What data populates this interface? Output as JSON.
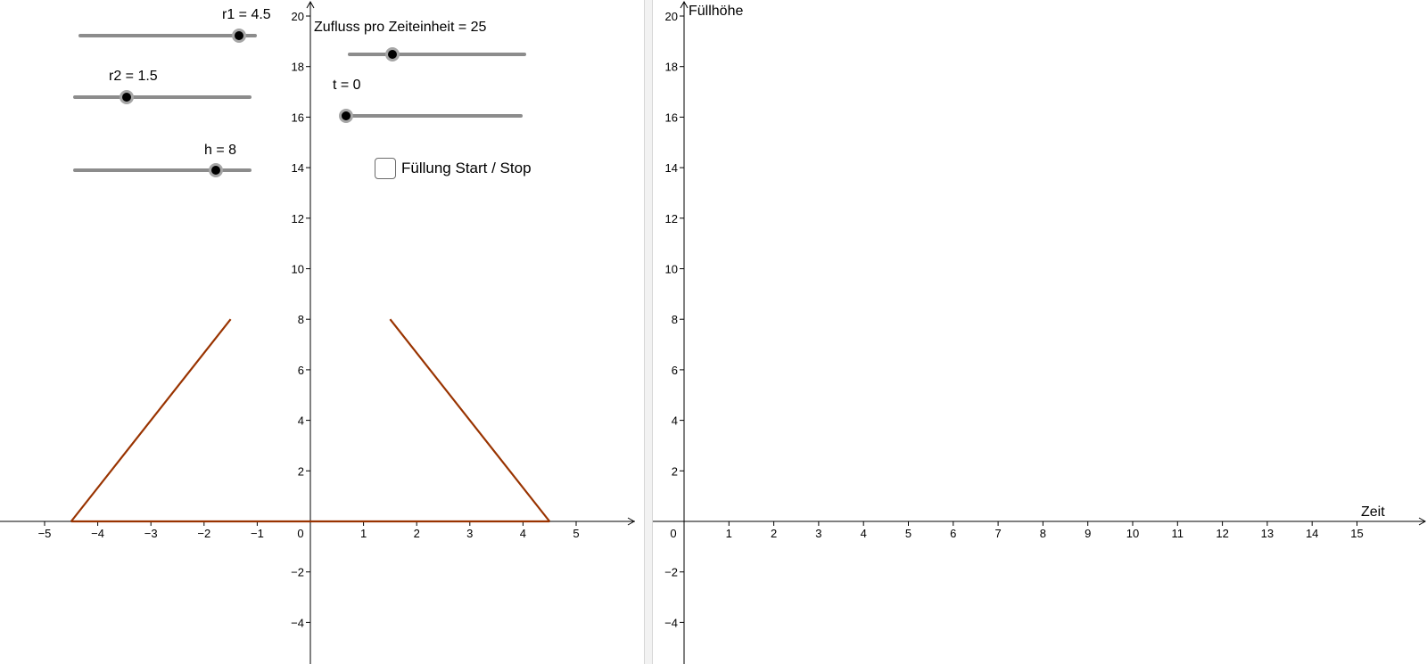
{
  "sliders": [
    {
      "id": "r1",
      "label": "r1 = 4.5",
      "min": 0,
      "max": 5,
      "value": 4.5
    },
    {
      "id": "r2",
      "label": "r2 = 1.5",
      "min": 0,
      "max": 5,
      "value": 1.5
    },
    {
      "id": "h",
      "label": "h = 8",
      "min": 0,
      "max": 10,
      "value": 8
    },
    {
      "id": "zufluss",
      "label": "Zufluss pro Zeiteinheit = 25",
      "min": 0,
      "max": 100,
      "value": 25
    },
    {
      "id": "t",
      "label": "t = 0",
      "min": 0,
      "max": 10,
      "value": 0
    }
  ],
  "checkbox": {
    "label": "Füllung Start / Stop",
    "checked": false
  },
  "left_graph": {
    "x_ticks": [
      "−5",
      "−4",
      "−3",
      "−2",
      "−1",
      "0",
      "1",
      "2",
      "3",
      "4",
      "5"
    ],
    "y_ticks": [
      "−4",
      "−2",
      "2",
      "4",
      "6",
      "8",
      "10",
      "12",
      "14",
      "16",
      "18",
      "20"
    ],
    "shape_color": "#993300",
    "vessel_bottom": [
      [
        -4.5,
        0
      ],
      [
        4.5,
        0
      ]
    ],
    "vessel_left_wall": [
      [
        -4.5,
        0
      ],
      [
        -1.5,
        8
      ]
    ],
    "vessel_right_wall": [
      [
        4.5,
        0
      ],
      [
        1.5,
        8
      ]
    ]
  },
  "right_graph": {
    "x_axis_label": "Zeit",
    "y_axis_label": "Füllhöhe",
    "x_ticks": [
      "1",
      "2",
      "3",
      "4",
      "5",
      "6",
      "7",
      "8",
      "9",
      "10",
      "11",
      "12",
      "13",
      "14",
      "15"
    ],
    "y_ticks": [
      "−4",
      "−2",
      "2",
      "4",
      "6",
      "8",
      "10",
      "12",
      "14",
      "16",
      "18",
      "20"
    ],
    "origin_label": "0"
  }
}
